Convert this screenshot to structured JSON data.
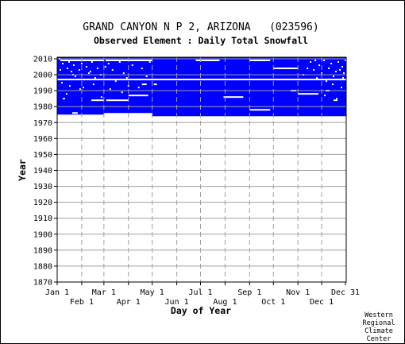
{
  "chart_data": {
    "type": "heatmap",
    "title": "GRAND CANYON N P 2, ARIZONA   (023596)",
    "subtitle": "Observed Element : Daily Total Snowfall",
    "xlabel": "Day of Year",
    "ylabel": "Year",
    "credit": [
      "Western",
      "Regional",
      "Climate",
      "Center"
    ],
    "x_ticks_upper": [
      {
        "label": "Jan 1",
        "day": 1
      },
      {
        "label": "Mar 1",
        "day": 60
      },
      {
        "label": "May 1",
        "day": 121
      },
      {
        "label": "Jul 1",
        "day": 182
      },
      {
        "label": "Sep 1",
        "day": 244
      },
      {
        "label": "Nov 1",
        "day": 305
      },
      {
        "label": "Dec 31",
        "day": 365
      }
    ],
    "x_ticks_lower": [
      {
        "label": "Feb 1",
        "day": 32
      },
      {
        "label": "Apr 1",
        "day": 91
      },
      {
        "label": "Jun 1",
        "day": 152
      },
      {
        "label": "Aug 1",
        "day": 213
      },
      {
        "label": "Oct 1",
        "day": 274
      },
      {
        "label": "Dec 1",
        "day": 335
      }
    ],
    "y_ticks": [
      "2010",
      "2000",
      "1990",
      "1980",
      "1970",
      "1960",
      "1950",
      "1940",
      "1930",
      "1920",
      "1910",
      "1900",
      "1890",
      "1880",
      "1870"
    ],
    "xlim": [
      1,
      366
    ],
    "ylim": [
      1870,
      2011
    ],
    "grid": true,
    "data_color": "#0000ff",
    "record_spans": [
      {
        "from": 1975,
        "to": 2011,
        "day_start": 1,
        "day_end": 60
      },
      {
        "from": 1976,
        "to": 2011,
        "day_start": 60,
        "day_end": 121
      },
      {
        "from": 1974,
        "to": 2011,
        "day_start": 121,
        "day_end": 366
      }
    ],
    "gaps": [
      {
        "year": 1997,
        "day_start": 1,
        "day_end": 366
      },
      {
        "year": 2009,
        "day_start": 5,
        "day_end": 60
      },
      {
        "year": 2009,
        "day_start": 62,
        "day_end": 121
      },
      {
        "year": 2009,
        "day_start": 176,
        "day_end": 206
      },
      {
        "year": 2009,
        "day_start": 244,
        "day_end": 270
      },
      {
        "year": 1984,
        "day_start": 44,
        "day_end": 60
      },
      {
        "year": 1984,
        "day_start": 63,
        "day_end": 91
      },
      {
        "year": 1987,
        "day_start": 91,
        "day_end": 116
      },
      {
        "year": 1986,
        "day_start": 211,
        "day_end": 236
      },
      {
        "year": 1978,
        "day_start": 244,
        "day_end": 270
      },
      {
        "year": 2004,
        "day_start": 274,
        "day_end": 305
      },
      {
        "year": 1988,
        "day_start": 305,
        "day_end": 331
      },
      {
        "year": 1984,
        "day_start": 350,
        "day_end": 355
      },
      {
        "year": 1990,
        "day_start": 340,
        "day_end": 345
      },
      {
        "year": 1990,
        "day_start": 296,
        "day_end": 303
      },
      {
        "year": 1994,
        "day_start": 108,
        "day_end": 114
      },
      {
        "year": 1994,
        "day_start": 123,
        "day_end": 127
      },
      {
        "year": 1985,
        "day_start": 8,
        "day_end": 11
      },
      {
        "year": 1976,
        "day_start": 20,
        "day_end": 27
      }
    ],
    "white_dots": [
      [
        3,
        2010
      ],
      [
        7,
        2007
      ],
      [
        10,
        2009
      ],
      [
        13,
        2004
      ],
      [
        15,
        2008
      ],
      [
        18,
        2002
      ],
      [
        21,
        2006
      ],
      [
        23,
        1999
      ],
      [
        26,
        2009
      ],
      [
        28,
        2003
      ],
      [
        31,
        2007
      ],
      [
        34,
        1997
      ],
      [
        37,
        2005
      ],
      [
        40,
        2001
      ],
      [
        44,
        2008
      ],
      [
        48,
        1998
      ],
      [
        51,
        2004
      ],
      [
        55,
        2000
      ],
      [
        58,
        2009
      ],
      [
        65,
        2007
      ],
      [
        70,
        2003
      ],
      [
        74,
        1996
      ],
      [
        79,
        2008
      ],
      [
        84,
        2001
      ],
      [
        88,
        1998
      ],
      [
        95,
        2006
      ],
      [
        100,
        2009
      ],
      [
        107,
        2004
      ],
      [
        113,
        1999
      ],
      [
        117,
        2008
      ],
      [
        320,
        2008
      ],
      [
        324,
        2003
      ],
      [
        328,
        1998
      ],
      [
        331,
        2006
      ],
      [
        334,
        2001
      ],
      [
        337,
        2009
      ],
      [
        340,
        1996
      ],
      [
        343,
        2004
      ],
      [
        346,
        2007
      ],
      [
        349,
        1999
      ],
      [
        352,
        2002
      ],
      [
        355,
        2008
      ],
      [
        358,
        1997
      ],
      [
        360,
        2005
      ],
      [
        362,
        2001
      ],
      [
        364,
        2009
      ],
      [
        311,
        2000
      ],
      [
        316,
        2004
      ],
      [
        326,
        2009
      ],
      [
        357,
        2003
      ],
      [
        361,
        1998
      ],
      [
        6,
        1995
      ],
      [
        16,
        1993
      ],
      [
        33,
        1992
      ],
      [
        46,
        1994
      ],
      [
        67,
        1991
      ],
      [
        90,
        1993
      ],
      [
        103,
        1992
      ],
      [
        348,
        1994
      ],
      [
        359,
        1992
      ],
      [
        12,
        1988
      ],
      [
        29,
        1991
      ],
      [
        56,
        1986
      ],
      [
        82,
        1989
      ],
      [
        338,
        1987
      ],
      [
        353,
        1985
      ],
      [
        4,
        2003
      ],
      [
        20,
        2000
      ],
      [
        42,
        2002
      ],
      [
        61,
        2005
      ]
    ]
  }
}
